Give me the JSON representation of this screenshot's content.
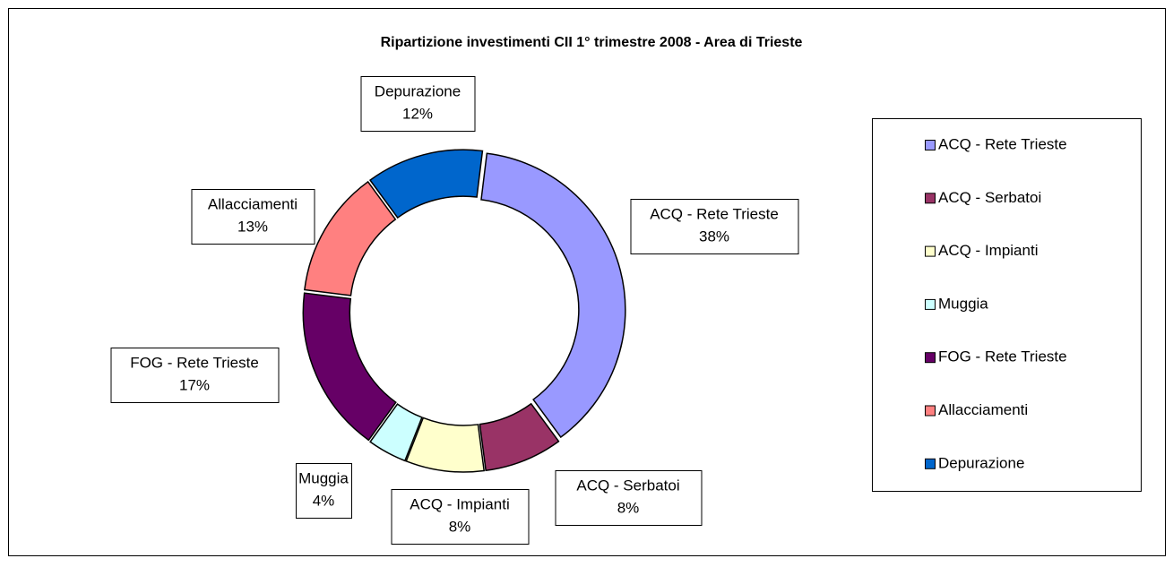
{
  "chart_data": {
    "type": "donut",
    "title": "Ripartizione investimenti CII 1° trimestre 2008 - Area di Trieste",
    "categories": [
      "ACQ - Rete Trieste",
      "ACQ - Serbatoi",
      "ACQ - Impianti",
      "Muggia",
      "FOG - Rete Trieste",
      "Allacciamenti",
      "Depurazione"
    ],
    "values": [
      38,
      8,
      8,
      4,
      17,
      13,
      12
    ],
    "value_labels": [
      "38%",
      "8%",
      "8%",
      "4%",
      "17%",
      "13%",
      "12%"
    ],
    "colors": [
      "#9999ff",
      "#993366",
      "#ffffcc",
      "#ccffff",
      "#660066",
      "#ff8080",
      "#0066cc"
    ],
    "legend": "right"
  }
}
